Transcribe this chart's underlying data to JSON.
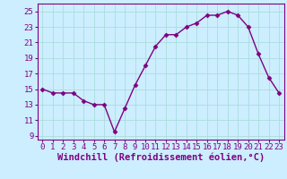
{
  "x": [
    0,
    1,
    2,
    3,
    4,
    5,
    6,
    7,
    8,
    9,
    10,
    11,
    12,
    13,
    14,
    15,
    16,
    17,
    18,
    19,
    20,
    21,
    22,
    23
  ],
  "y": [
    15,
    14.5,
    14.5,
    14.5,
    13.5,
    13,
    13,
    9.5,
    12.5,
    15.5,
    18,
    20.5,
    22,
    22,
    23,
    23.5,
    24.5,
    24.5,
    25,
    24.5,
    23,
    19.5,
    16.5,
    14.5
  ],
  "line_color": "#800080",
  "marker": "D",
  "marker_size": 2.5,
  "bg_color": "#cceeff",
  "grid_color": "#aadddd",
  "xlabel": "Windchill (Refroidissement éolien,°C)",
  "xlabel_fontsize": 7.5,
  "tick_fontsize": 6.5,
  "tick_color": "#800080",
  "ylim": [
    8.5,
    26
  ],
  "yticks": [
    9,
    11,
    13,
    15,
    17,
    19,
    21,
    23,
    25
  ],
  "xlim": [
    -0.5,
    23.5
  ],
  "xticks": [
    0,
    1,
    2,
    3,
    4,
    5,
    6,
    7,
    8,
    9,
    10,
    11,
    12,
    13,
    14,
    15,
    16,
    17,
    18,
    19,
    20,
    21,
    22,
    23
  ],
  "spine_color": "#800080",
  "linewidth": 1.0
}
